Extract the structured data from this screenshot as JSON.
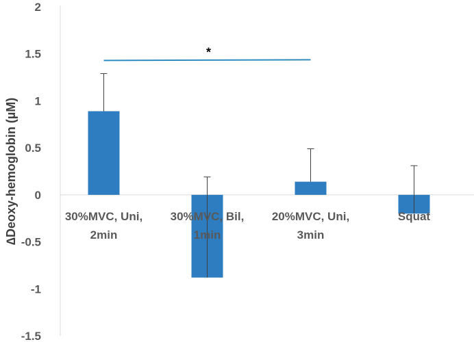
{
  "chart_data": {
    "type": "bar",
    "categories": [
      [
        "30%MVC, Uni,",
        "2min"
      ],
      [
        "30%MVC, Bil,",
        "1min"
      ],
      [
        "20%MVC, Uni,",
        "3min"
      ],
      [
        "Squat"
      ]
    ],
    "values": [
      0.89,
      -0.88,
      0.14,
      -0.2
    ],
    "errors": [
      0.4,
      1.07,
      0.35,
      0.51
    ],
    "ylabel": "∆Deoxy-hemoglobin (µM)",
    "ylim": [
      -1.5,
      2
    ],
    "yticks": [
      -1.5,
      -1,
      -0.5,
      0,
      0.5,
      1,
      1.5,
      2
    ],
    "ytick_labels": [
      "-1.5",
      "-1",
      "-0.5",
      "0",
      "0.5",
      "1",
      "1.5",
      "2"
    ],
    "grid": false,
    "legend": "none",
    "bar_color": "#2E7DC0",
    "significance": {
      "from": 0,
      "to": 2,
      "y": 1.43,
      "label": "*",
      "color": "#2E8BC0"
    }
  }
}
